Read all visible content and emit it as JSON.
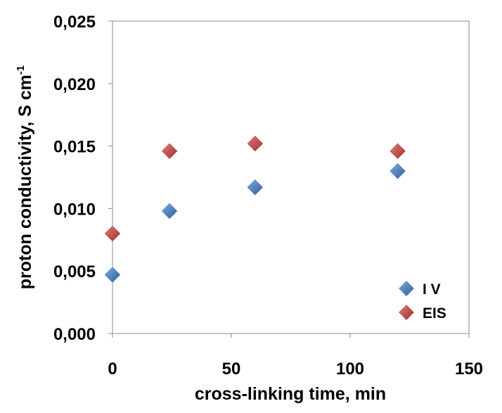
{
  "chart_data": {
    "type": "scatter",
    "xlabel": "cross-linking time, min",
    "ylabel": "proton conductivity, S cm",
    "ylabel_superscript": "-1",
    "xlim": [
      0,
      150
    ],
    "ylim": [
      0,
      0.025
    ],
    "x_ticks": [
      0,
      50,
      100,
      150
    ],
    "x_tick_labels": [
      "0",
      "50",
      "100",
      "150"
    ],
    "y_ticks": [
      0,
      0.005,
      0.01,
      0.015,
      0.02,
      0.025
    ],
    "y_tick_labels": [
      "0,000",
      "0,005",
      "0,010",
      "0,015",
      "0,020",
      "0,025"
    ],
    "grid": false,
    "legend_position": "bottom-right",
    "series": [
      {
        "name": "I V",
        "color": "#4a7ebb",
        "marker": "diamond",
        "x": [
          0,
          24,
          60,
          120
        ],
        "y": [
          0.0047,
          0.0098,
          0.0117,
          0.013
        ]
      },
      {
        "name": "EIS",
        "color": "#be4b48",
        "marker": "diamond",
        "x": [
          0,
          24,
          60,
          120
        ],
        "y": [
          0.008,
          0.0146,
          0.0152,
          0.0146
        ]
      }
    ]
  }
}
